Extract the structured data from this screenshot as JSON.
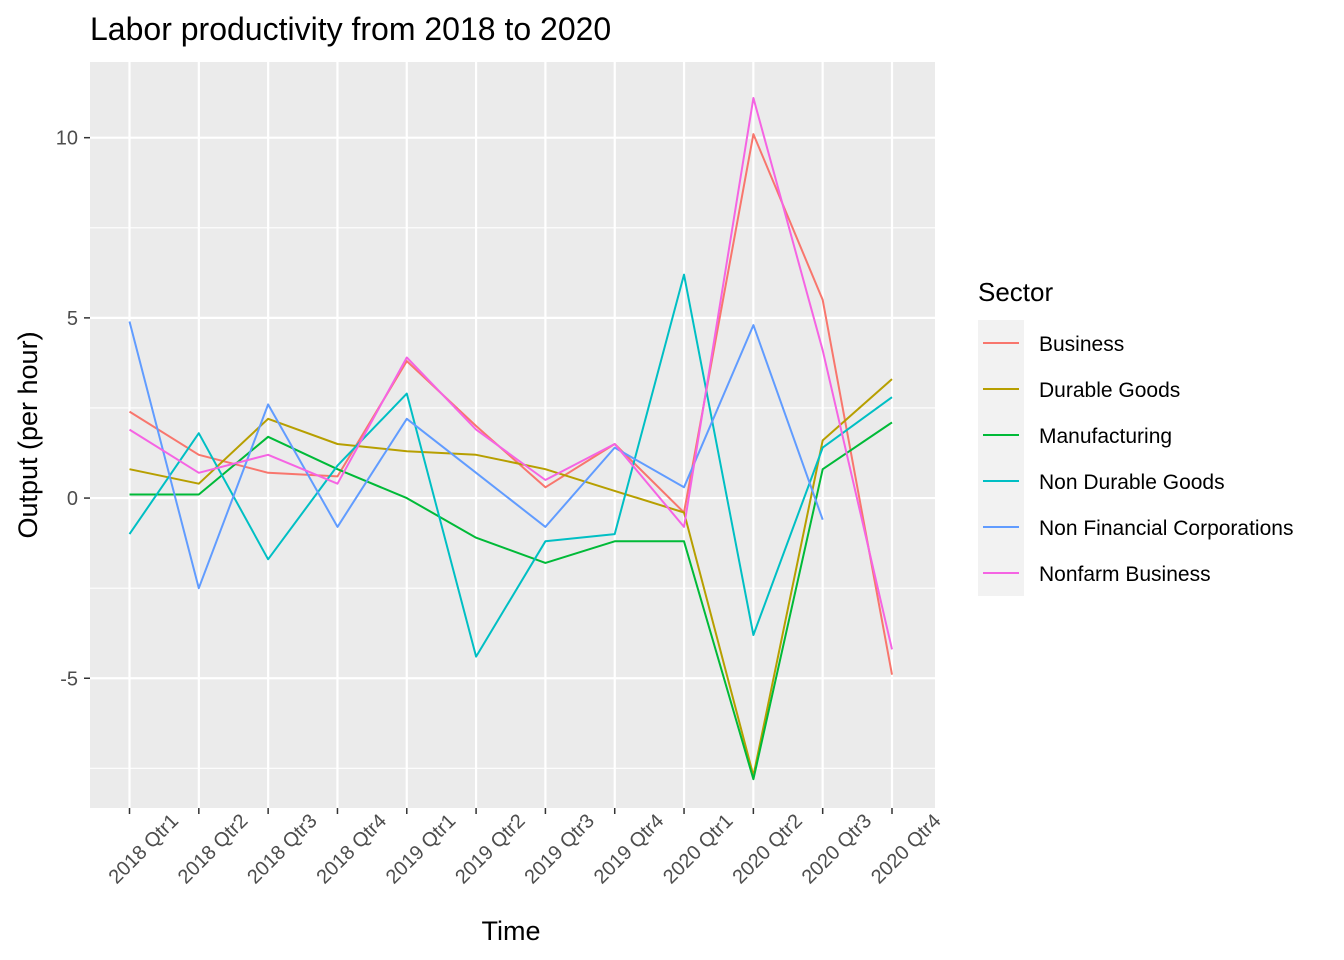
{
  "chart_data": {
    "type": "line",
    "title": "Labor productivity from 2018 to 2020",
    "xlabel": "Time",
    "ylabel": "Output (per hour)",
    "categories": [
      "2018 Qtr1",
      "2018 Qtr2",
      "2018 Qtr3",
      "2018 Qtr4",
      "2019 Qtr1",
      "2019 Qtr2",
      "2019 Qtr3",
      "2019 Qtr4",
      "2020 Qtr1",
      "2020 Qtr2",
      "2020 Qtr3",
      "2020 Qtr4"
    ],
    "ylim": [
      -8.6,
      12.1
    ],
    "yticks": [
      -5,
      0,
      5,
      10
    ],
    "grid": true,
    "legend": {
      "title": "Sector",
      "position": "right"
    },
    "series": [
      {
        "name": "Business",
        "color": "#F8766D",
        "values": [
          2.4,
          1.2,
          0.7,
          0.6,
          3.8,
          2.0,
          0.3,
          1.5,
          -0.4,
          10.1,
          5.5,
          -4.9
        ]
      },
      {
        "name": "Durable Goods",
        "color": "#B79F00",
        "values": [
          0.8,
          0.4,
          2.2,
          1.5,
          1.3,
          1.2,
          0.8,
          0.2,
          -0.4,
          -7.7,
          1.6,
          3.3
        ]
      },
      {
        "name": "Manufacturing",
        "color": "#00BA38",
        "values": [
          0.1,
          0.1,
          1.7,
          0.8,
          0.0,
          -1.1,
          -1.8,
          -1.2,
          -1.2,
          -7.8,
          0.8,
          2.1
        ]
      },
      {
        "name": "Non Durable Goods",
        "color": "#00BFC4",
        "values": [
          -1.0,
          1.8,
          -1.7,
          0.9,
          2.9,
          -4.4,
          -1.2,
          -1.0,
          6.2,
          -3.8,
          1.4,
          2.8
        ]
      },
      {
        "name": "Non Financial Corporations",
        "color": "#619CFF",
        "values": [
          4.9,
          -2.5,
          2.6,
          -0.8,
          2.2,
          0.7,
          -0.8,
          1.4,
          0.3,
          4.8,
          -0.6,
          null
        ]
      },
      {
        "name": "Nonfarm Business",
        "color": "#F564E3",
        "values": [
          1.9,
          0.7,
          1.2,
          0.4,
          3.9,
          1.9,
          0.5,
          1.5,
          -0.8,
          11.1,
          4.1,
          -4.2
        ]
      }
    ]
  }
}
